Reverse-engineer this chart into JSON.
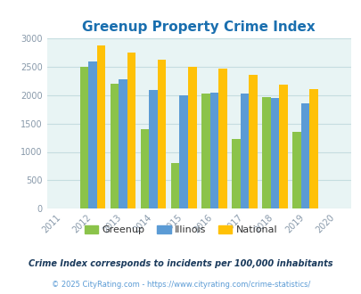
{
  "title": "Greenup Property Crime Index",
  "years": [
    2011,
    2012,
    2013,
    2014,
    2015,
    2016,
    2017,
    2018,
    2019,
    2020
  ],
  "data_years": [
    2012,
    2013,
    2014,
    2015,
    2016,
    2017,
    2018,
    2019
  ],
  "greenup": [
    2500,
    2200,
    1400,
    800,
    2025,
    1220,
    1960,
    1350
  ],
  "illinois": [
    2590,
    2270,
    2090,
    2000,
    2050,
    2020,
    1950,
    1850
  ],
  "national": [
    2870,
    2750,
    2620,
    2500,
    2470,
    2360,
    2190,
    2100
  ],
  "bar_width": 0.28,
  "color_greenup": "#8bc34a",
  "color_illinois": "#5b9bd5",
  "color_national": "#ffc107",
  "bg_color": "#e8f4f4",
  "ylim": [
    0,
    3000
  ],
  "yticks": [
    0,
    500,
    1000,
    1500,
    2000,
    2500,
    3000
  ],
  "legend_labels": [
    "Greenup",
    "Illinois",
    "National"
  ],
  "footnote1": "Crime Index corresponds to incidents per 100,000 inhabitants",
  "footnote2": "© 2025 CityRating.com - https://www.cityrating.com/crime-statistics/",
  "title_color": "#1a6faf",
  "footnote1_color": "#1a3a5c",
  "footnote2_color": "#5b9bd5",
  "grid_color": "#c5dde0",
  "tick_color": "#8899aa",
  "title_fontsize": 11,
  "tick_fontsize": 7,
  "legend_fontsize": 8,
  "footnote1_fontsize": 7,
  "footnote2_fontsize": 6
}
